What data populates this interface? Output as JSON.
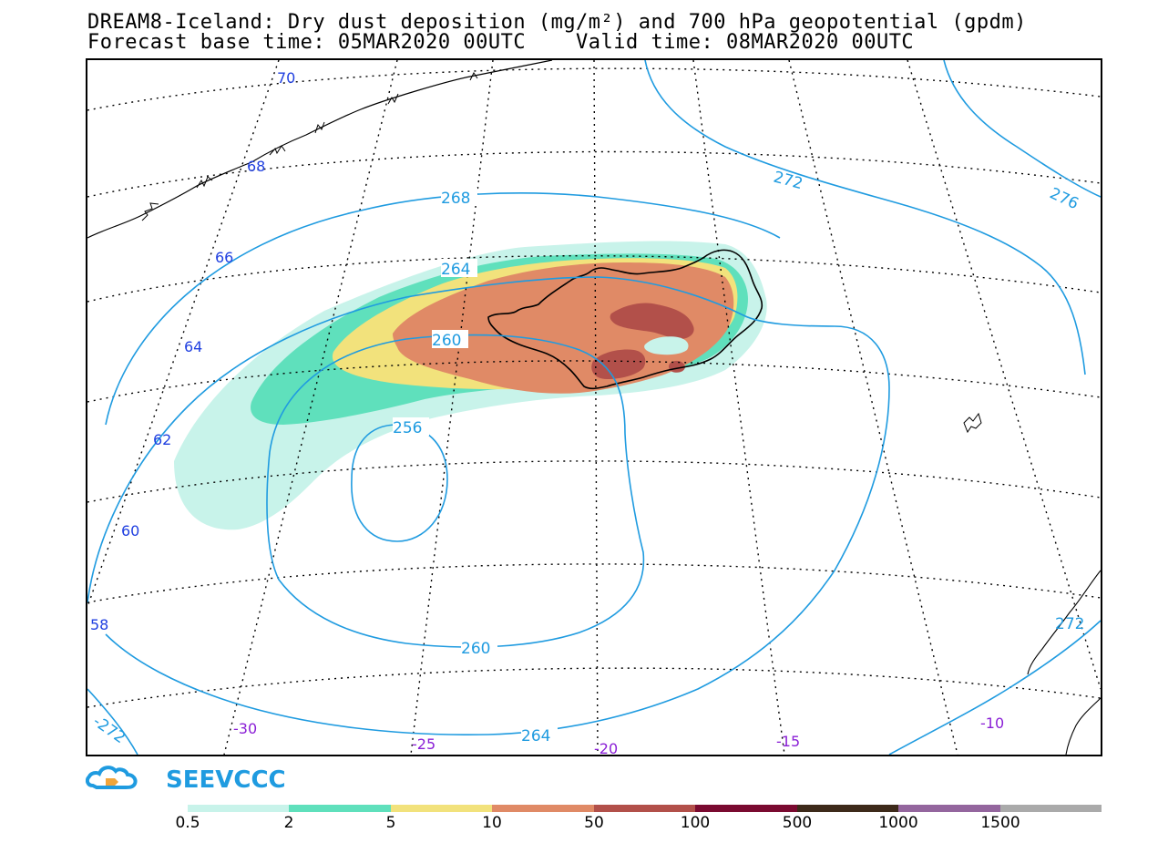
{
  "title": {
    "line1": "DREAM8-Iceland: Dry dust deposition (mg/m²) and 700 hPa geopotential (gpdm)",
    "line2": "Forecast base time: 05MAR2020 00UTC    Valid time: 08MAR2020 00UTC"
  },
  "map": {
    "region": "Iceland",
    "latitude_labels": [
      "70",
      "68",
      "66",
      "64",
      "62",
      "60",
      "58"
    ],
    "longitude_labels": [
      "-30",
      "-25",
      "-20",
      "-15",
      "-10"
    ],
    "contour_labels": [
      "268",
      "272",
      "276",
      "264",
      "260",
      "256",
      "260",
      "264",
      "-272",
      "272"
    ],
    "colors": {
      "contour": "#1f9be0",
      "lat_label": "#1f3fe0",
      "lon_label": "#8a1fd6",
      "dust_0_5": "#c8f3ea",
      "dust_2": "#5fe0bc",
      "dust_5": "#f2e27c",
      "dust_10": "#e08a66",
      "dust_50": "#b2504a",
      "dust_100": "#7a0a30"
    }
  },
  "logo": {
    "text": "SEEVCCC",
    "color": "#1f9be0",
    "icon": "cloud-logo-icon"
  },
  "legend": {
    "colors": [
      "#c8f3ea",
      "#5fe0bc",
      "#f2e27c",
      "#e08a66",
      "#b2504a",
      "#7a0a30",
      "#3d2a1a",
      "#94669e",
      "#aaaaaa"
    ],
    "ticks": [
      "0.5",
      "2",
      "5",
      "10",
      "50",
      "100",
      "500",
      "1000",
      "1500"
    ]
  }
}
